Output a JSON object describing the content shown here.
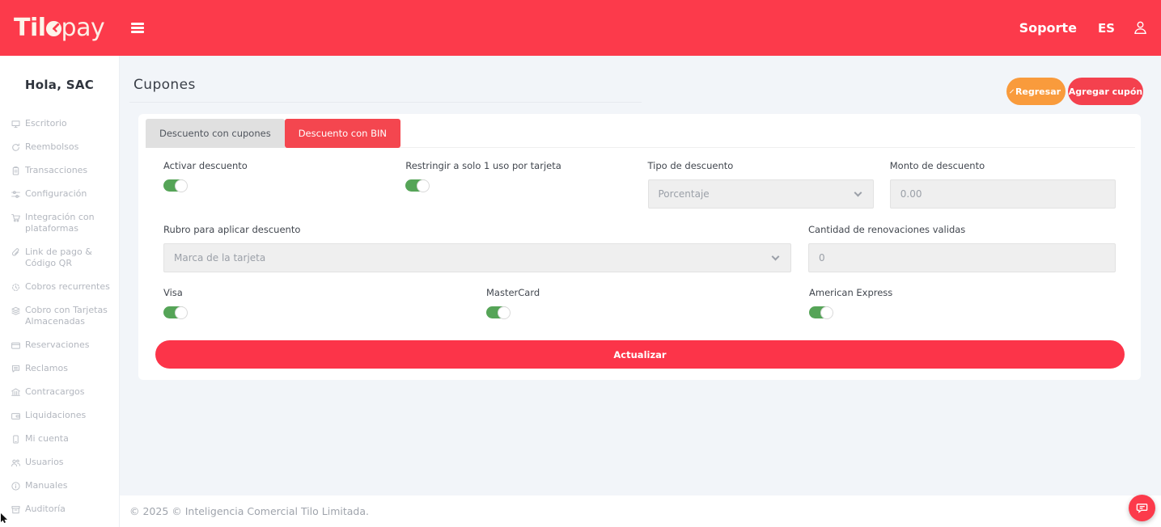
{
  "header": {
    "logo_prefix": "Til",
    "logo_suffix": "pay",
    "soporte_label": "Soporte",
    "language_label": "ES"
  },
  "sidebar": {
    "greeting": "Hola, SAC",
    "items": [
      {
        "label": "Escritorio",
        "icon": "desktop-icon"
      },
      {
        "label": "Reembolsos",
        "icon": "refund-icon"
      },
      {
        "label": "Transacciones",
        "icon": "transactions-icon"
      },
      {
        "label": "Configuración",
        "icon": "settings-icon"
      },
      {
        "label": "Integración con plataformas",
        "icon": "integrations-icon"
      },
      {
        "label": "Link de pago & Código QR",
        "icon": "payment-link-icon"
      },
      {
        "label": "Cobros recurrentes",
        "icon": "recurring-icon"
      },
      {
        "label": "Cobro con Tarjetas Almacenadas",
        "icon": "stored-cards-icon"
      },
      {
        "label": "Reservaciones",
        "icon": "reservations-icon"
      },
      {
        "label": "Reclamos",
        "icon": "claims-icon"
      },
      {
        "label": "Contracargos",
        "icon": "chargebacks-icon"
      },
      {
        "label": "Liquidaciones",
        "icon": "settlements-icon"
      },
      {
        "label": "Mi cuenta",
        "icon": "account-icon"
      },
      {
        "label": "Usuarios",
        "icon": "users-icon"
      },
      {
        "label": "Manuales",
        "icon": "manuals-icon"
      },
      {
        "label": "Auditoría",
        "icon": "audit-icon"
      },
      {
        "label": "",
        "icon": "document-icon"
      }
    ]
  },
  "page": {
    "title": "Cupones",
    "back_button_label": "Regresar",
    "add_button_label": "Agregar cupón"
  },
  "tabs": [
    {
      "label": "Descuento con cupones",
      "active": false
    },
    {
      "label": "Descuento con BIN",
      "active": true
    }
  ],
  "form": {
    "activar": {
      "label": "Activar descuento",
      "enabled": true
    },
    "restringir": {
      "label": "Restringir a solo 1 uso por tarjeta",
      "enabled": true
    },
    "tipo": {
      "label": "Tipo de descuento",
      "selected": "Porcentaje"
    },
    "monto": {
      "label": "Monto de descuento",
      "value": "0.00"
    },
    "rubro": {
      "label": "Rubro para aplicar descuento",
      "selected": "Marca de la tarjeta"
    },
    "cantidad": {
      "label": "Cantidad de renovaciones validas",
      "value": "0"
    },
    "visa": {
      "label": "Visa",
      "enabled": true
    },
    "mastercard": {
      "label": "MasterCard",
      "enabled": true
    },
    "amex": {
      "label": "American Express",
      "enabled": true
    },
    "submit_label": "Actualizar"
  },
  "footer": {
    "copyright": "© 2025 © Inteligencia Comercial Tilo Limitada."
  },
  "colors": {
    "header_red": "#FC3A4B",
    "accent_red": "#F4464F",
    "submit_red": "#FC3449",
    "orange": "#F99B3C",
    "toggle_green": "#55A457",
    "content_bg": "#F2F5F9",
    "inactive_tab_gray": "#E0E0E0"
  }
}
